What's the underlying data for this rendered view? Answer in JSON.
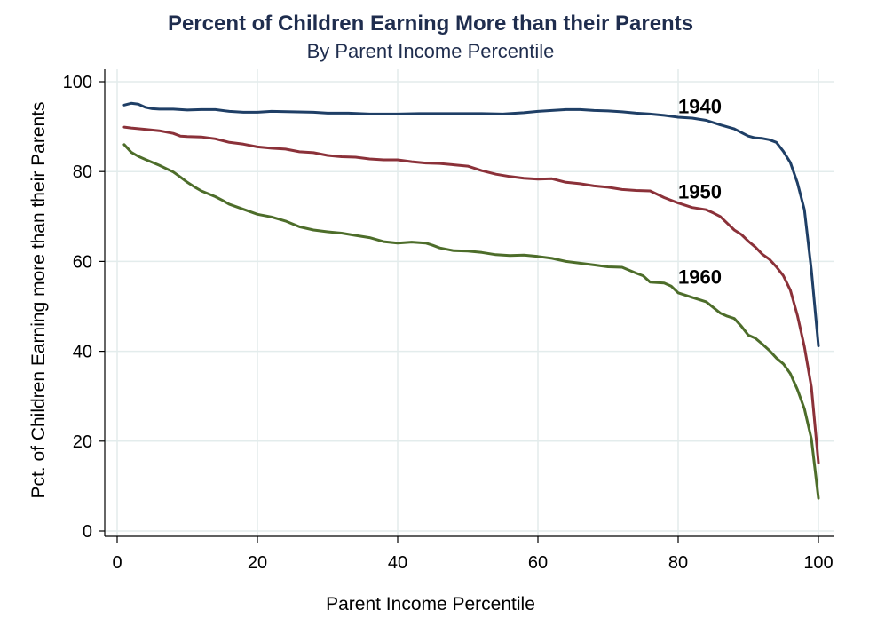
{
  "chart_data": {
    "type": "line",
    "title": "Percent of Children Earning More than their Parents",
    "subtitle": "By Parent Income Percentile",
    "xlabel": "Parent Income Percentile",
    "ylabel": "Pct. of Children Earning more than their Parents",
    "xlim": [
      0,
      100
    ],
    "ylim": [
      0,
      100
    ],
    "xticks": [
      0,
      20,
      40,
      60,
      80,
      100
    ],
    "yticks": [
      0,
      20,
      40,
      60,
      80,
      100
    ],
    "grid": true,
    "series": [
      {
        "name": "1940",
        "color": "#1f3f66",
        "label_at": [
          80,
          93
        ],
        "points": [
          [
            1,
            94.8
          ],
          [
            2,
            95.2
          ],
          [
            3,
            95.0
          ],
          [
            4,
            94.3
          ],
          [
            5,
            94.0
          ],
          [
            6,
            93.9
          ],
          [
            8,
            93.9
          ],
          [
            10,
            93.7
          ],
          [
            12,
            93.8
          ],
          [
            14,
            93.8
          ],
          [
            16,
            93.4
          ],
          [
            18,
            93.2
          ],
          [
            20,
            93.2
          ],
          [
            22,
            93.4
          ],
          [
            25,
            93.3
          ],
          [
            28,
            93.2
          ],
          [
            30,
            93.0
          ],
          [
            33,
            93.0
          ],
          [
            36,
            92.8
          ],
          [
            38,
            92.8
          ],
          [
            40,
            92.8
          ],
          [
            43,
            92.9
          ],
          [
            46,
            92.9
          ],
          [
            49,
            92.9
          ],
          [
            52,
            92.9
          ],
          [
            55,
            92.8
          ],
          [
            58,
            93.1
          ],
          [
            60,
            93.4
          ],
          [
            62,
            93.6
          ],
          [
            64,
            93.8
          ],
          [
            66,
            93.8
          ],
          [
            68,
            93.6
          ],
          [
            70,
            93.5
          ],
          [
            72,
            93.3
          ],
          [
            74,
            93.0
          ],
          [
            76,
            92.8
          ],
          [
            78,
            92.5
          ],
          [
            80,
            92.1
          ],
          [
            82,
            91.9
          ],
          [
            84,
            91.4
          ],
          [
            86,
            90.4
          ],
          [
            88,
            89.5
          ],
          [
            89,
            88.7
          ],
          [
            90,
            87.9
          ],
          [
            91,
            87.5
          ],
          [
            92,
            87.4
          ],
          [
            93,
            87.1
          ],
          [
            94,
            86.5
          ],
          [
            95,
            84.5
          ],
          [
            96,
            82.0
          ],
          [
            97,
            77.5
          ],
          [
            98,
            71.5
          ],
          [
            99,
            58.0
          ],
          [
            100,
            41.2
          ]
        ]
      },
      {
        "name": "1950",
        "color": "#8b3139",
        "label_at": [
          80,
          74
        ],
        "points": [
          [
            1,
            89.9
          ],
          [
            2,
            89.7
          ],
          [
            4,
            89.4
          ],
          [
            6,
            89.1
          ],
          [
            8,
            88.5
          ],
          [
            9,
            87.9
          ],
          [
            10,
            87.8
          ],
          [
            12,
            87.7
          ],
          [
            14,
            87.3
          ],
          [
            16,
            86.5
          ],
          [
            18,
            86.1
          ],
          [
            20,
            85.5
          ],
          [
            22,
            85.2
          ],
          [
            24,
            85.0
          ],
          [
            26,
            84.4
          ],
          [
            28,
            84.2
          ],
          [
            30,
            83.6
          ],
          [
            32,
            83.3
          ],
          [
            34,
            83.2
          ],
          [
            36,
            82.8
          ],
          [
            38,
            82.6
          ],
          [
            40,
            82.6
          ],
          [
            42,
            82.2
          ],
          [
            44,
            81.9
          ],
          [
            46,
            81.8
          ],
          [
            48,
            81.5
          ],
          [
            50,
            81.2
          ],
          [
            52,
            80.2
          ],
          [
            54,
            79.4
          ],
          [
            56,
            78.9
          ],
          [
            58,
            78.5
          ],
          [
            60,
            78.3
          ],
          [
            62,
            78.4
          ],
          [
            64,
            77.6
          ],
          [
            66,
            77.3
          ],
          [
            68,
            76.8
          ],
          [
            70,
            76.5
          ],
          [
            72,
            76.0
          ],
          [
            74,
            75.8
          ],
          [
            76,
            75.7
          ],
          [
            78,
            74.2
          ],
          [
            80,
            73.0
          ],
          [
            82,
            72.0
          ],
          [
            84,
            71.5
          ],
          [
            85,
            70.8
          ],
          [
            86,
            70.0
          ],
          [
            87,
            68.5
          ],
          [
            88,
            67.0
          ],
          [
            89,
            66.0
          ],
          [
            90,
            64.5
          ],
          [
            91,
            63.2
          ],
          [
            92,
            61.6
          ],
          [
            93,
            60.5
          ],
          [
            94,
            58.8
          ],
          [
            95,
            56.8
          ],
          [
            96,
            53.6
          ],
          [
            97,
            48.0
          ],
          [
            98,
            41.0
          ],
          [
            99,
            32.0
          ],
          [
            100,
            15.2
          ]
        ]
      },
      {
        "name": "1960",
        "color": "#4d6d2a",
        "label_at": [
          80,
          55
        ],
        "points": [
          [
            1,
            86.0
          ],
          [
            2,
            84.3
          ],
          [
            3,
            83.4
          ],
          [
            4,
            82.7
          ],
          [
            6,
            81.4
          ],
          [
            8,
            79.9
          ],
          [
            9,
            78.8
          ],
          [
            10,
            77.6
          ],
          [
            11,
            76.6
          ],
          [
            12,
            75.7
          ],
          [
            14,
            74.4
          ],
          [
            15,
            73.6
          ],
          [
            16,
            72.7
          ],
          [
            18,
            71.6
          ],
          [
            20,
            70.5
          ],
          [
            22,
            69.9
          ],
          [
            24,
            69.0
          ],
          [
            26,
            67.7
          ],
          [
            28,
            67.0
          ],
          [
            30,
            66.6
          ],
          [
            32,
            66.3
          ],
          [
            34,
            65.8
          ],
          [
            36,
            65.3
          ],
          [
            38,
            64.4
          ],
          [
            40,
            64.1
          ],
          [
            42,
            64.3
          ],
          [
            44,
            64.1
          ],
          [
            45,
            63.6
          ],
          [
            46,
            63.0
          ],
          [
            48,
            62.4
          ],
          [
            50,
            62.3
          ],
          [
            52,
            62.0
          ],
          [
            54,
            61.5
          ],
          [
            56,
            61.3
          ],
          [
            58,
            61.4
          ],
          [
            60,
            61.1
          ],
          [
            62,
            60.7
          ],
          [
            64,
            60.0
          ],
          [
            66,
            59.6
          ],
          [
            68,
            59.2
          ],
          [
            70,
            58.8
          ],
          [
            72,
            58.7
          ],
          [
            74,
            57.4
          ],
          [
            75,
            56.8
          ],
          [
            76,
            55.4
          ],
          [
            78,
            55.2
          ],
          [
            79,
            54.5
          ],
          [
            80,
            53.0
          ],
          [
            82,
            52.0
          ],
          [
            84,
            51.0
          ],
          [
            86,
            48.5
          ],
          [
            87,
            47.8
          ],
          [
            88,
            47.3
          ],
          [
            89,
            45.6
          ],
          [
            90,
            43.6
          ],
          [
            91,
            42.9
          ],
          [
            92,
            41.6
          ],
          [
            93,
            40.2
          ],
          [
            94,
            38.5
          ],
          [
            95,
            37.2
          ],
          [
            96,
            35.0
          ],
          [
            97,
            31.5
          ],
          [
            98,
            27.2
          ],
          [
            99,
            20.5
          ],
          [
            100,
            7.3
          ]
        ]
      }
    ]
  }
}
